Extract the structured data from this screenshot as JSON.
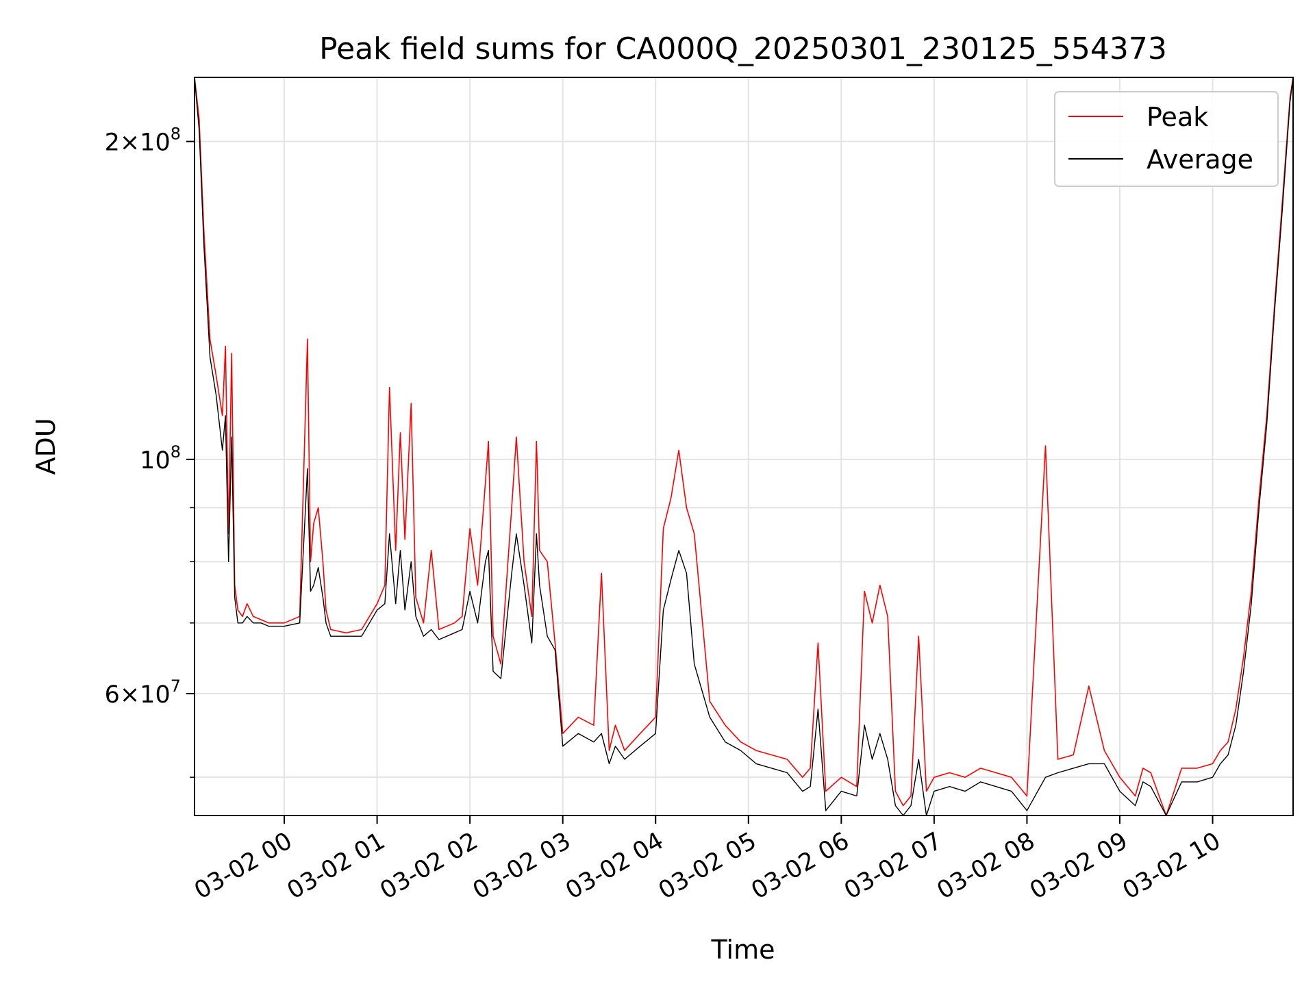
{
  "chart_data": {
    "type": "line",
    "title": "Peak field sums for CA000Q_20250301_230125_554373",
    "xlabel": "Time",
    "ylabel": "ADU",
    "yscale": "log",
    "xlim": [
      "03-01 23:02",
      "03-02 10:52"
    ],
    "ylim": [
      46000000,
      230000000
    ],
    "x_ticks": [
      "03-02 00",
      "03-02 01",
      "03-02 02",
      "03-02 03",
      "03-02 04",
      "03-02 05",
      "03-02 06",
      "03-02 07",
      "03-02 08",
      "03-02 09",
      "03-02 10"
    ],
    "y_ticks": [
      {
        "value": 200000000,
        "mant": "2",
        "exp": "8"
      },
      {
        "value": 100000000,
        "mant": "",
        "exp": "8"
      },
      {
        "value": 60000000,
        "mant": "6",
        "exp": "7"
      }
    ],
    "y_minor_ticks": [
      50000000,
      70000000,
      80000000,
      90000000
    ],
    "grid": true,
    "legend_position": "top-right",
    "series": [
      {
        "name": "Peak",
        "color": "#ff0000",
        "x": [
          "03-01 23:02",
          "03-01 23:05",
          "03-01 23:08",
          "03-01 23:12",
          "03-01 23:16",
          "03-01 23:20",
          "03-01 23:22",
          "03-01 23:24",
          "03-01 23:26",
          "03-01 23:28",
          "03-01 23:30",
          "03-01 23:33",
          "03-01 23:36",
          "03-01 23:40",
          "03-01 23:45",
          "03-01 23:50",
          "03-02 00:00",
          "03-02 00:10",
          "03-02 00:15",
          "03-02 00:17",
          "03-02 00:19",
          "03-02 00:22",
          "03-02 00:25",
          "03-02 00:27",
          "03-02 00:30",
          "03-02 00:40",
          "03-02 00:50",
          "03-02 01:00",
          "03-02 01:05",
          "03-02 01:08",
          "03-02 01:12",
          "03-02 01:15",
          "03-02 01:18",
          "03-02 01:22",
          "03-02 01:25",
          "03-02 01:30",
          "03-02 01:35",
          "03-02 01:40",
          "03-02 01:50",
          "03-02 01:55",
          "03-02 02:00",
          "03-02 02:05",
          "03-02 02:10",
          "03-02 02:12",
          "03-02 02:15",
          "03-02 02:20",
          "03-02 02:27",
          "03-02 02:30",
          "03-02 02:35",
          "03-02 02:40",
          "03-02 02:43",
          "03-02 02:45",
          "03-02 02:50",
          "03-02 02:55",
          "03-02 03:00",
          "03-02 03:10",
          "03-02 03:20",
          "03-02 03:25",
          "03-02 03:30",
          "03-02 03:34",
          "03-02 03:40",
          "03-02 03:50",
          "03-02 04:00",
          "03-02 04:05",
          "03-02 04:10",
          "03-02 04:15",
          "03-02 04:20",
          "03-02 04:25",
          "03-02 04:35",
          "03-02 04:45",
          "03-02 04:55",
          "03-02 05:05",
          "03-02 05:15",
          "03-02 05:25",
          "03-02 05:35",
          "03-02 05:40",
          "03-02 05:45",
          "03-02 05:50",
          "03-02 06:00",
          "03-02 06:10",
          "03-02 06:15",
          "03-02 06:20",
          "03-02 06:25",
          "03-02 06:30",
          "03-02 06:35",
          "03-02 06:40",
          "03-02 06:45",
          "03-02 06:50",
          "03-02 06:55",
          "03-02 07:00",
          "03-02 07:10",
          "03-02 07:20",
          "03-02 07:30",
          "03-02 07:40",
          "03-02 07:50",
          "03-02 08:00",
          "03-02 08:12",
          "03-02 08:20",
          "03-02 08:30",
          "03-02 08:40",
          "03-02 08:50",
          "03-02 09:00",
          "03-02 09:10",
          "03-02 09:15",
          "03-02 09:20",
          "03-02 09:30",
          "03-02 09:40",
          "03-02 09:50",
          "03-02 10:00",
          "03-02 10:05",
          "03-02 10:10",
          "03-02 10:15",
          "03-02 10:20",
          "03-02 10:25",
          "03-02 10:30",
          "03-02 10:35",
          "03-02 10:40",
          "03-02 10:45",
          "03-02 10:50",
          "03-02 10:52"
        ],
        "values": [
          230000000,
          210000000,
          165000000,
          130000000,
          120000000,
          110000000,
          128000000,
          85000000,
          126000000,
          76000000,
          72000000,
          71000000,
          73000000,
          71000000,
          70500000,
          70000000,
          70000000,
          71000000,
          130000000,
          80000000,
          87000000,
          90000000,
          80000000,
          72000000,
          69000000,
          68500000,
          69000000,
          73000000,
          76000000,
          117000000,
          82000000,
          106000000,
          84000000,
          113000000,
          74000000,
          70000000,
          82000000,
          69000000,
          70000000,
          71000000,
          86000000,
          76000000,
          95000000,
          104000000,
          68000000,
          64000000,
          90000000,
          105000000,
          80000000,
          71000000,
          104000000,
          82000000,
          80000000,
          67000000,
          55000000,
          57000000,
          56000000,
          78000000,
          53000000,
          56000000,
          53000000,
          55000000,
          57000000,
          86000000,
          92000000,
          102000000,
          90000000,
          85000000,
          59000000,
          56000000,
          54000000,
          53000000,
          52500000,
          52000000,
          50000000,
          51000000,
          67000000,
          48500000,
          50000000,
          49000000,
          75000000,
          70000000,
          76000000,
          71000000,
          48500000,
          47000000,
          48000000,
          68000000,
          48500000,
          50000000,
          50500000,
          50000000,
          51000000,
          50500000,
          50000000,
          48000000,
          103000000,
          52000000,
          52500000,
          61000000,
          53000000,
          50000000,
          48000000,
          51000000,
          50500000,
          46000000,
          51000000,
          51000000,
          51500000,
          53000000,
          54000000,
          58000000,
          65000000,
          75000000,
          92000000,
          110000000,
          140000000,
          175000000,
          220000000,
          230000000
        ]
      },
      {
        "name": "Average",
        "color": "#000000",
        "x": [
          "03-01 23:02",
          "03-01 23:05",
          "03-01 23:08",
          "03-01 23:12",
          "03-01 23:16",
          "03-01 23:20",
          "03-01 23:22",
          "03-01 23:24",
          "03-01 23:26",
          "03-01 23:28",
          "03-01 23:30",
          "03-01 23:33",
          "03-01 23:36",
          "03-01 23:40",
          "03-01 23:45",
          "03-01 23:50",
          "03-02 00:00",
          "03-02 00:10",
          "03-02 00:15",
          "03-02 00:17",
          "03-02 00:19",
          "03-02 00:22",
          "03-02 00:25",
          "03-02 00:27",
          "03-02 00:30",
          "03-02 00:40",
          "03-02 00:50",
          "03-02 01:00",
          "03-02 01:05",
          "03-02 01:08",
          "03-02 01:12",
          "03-02 01:15",
          "03-02 01:18",
          "03-02 01:22",
          "03-02 01:25",
          "03-02 01:30",
          "03-02 01:35",
          "03-02 01:40",
          "03-02 01:50",
          "03-02 01:55",
          "03-02 02:00",
          "03-02 02:05",
          "03-02 02:10",
          "03-02 02:12",
          "03-02 02:15",
          "03-02 02:20",
          "03-02 02:27",
          "03-02 02:30",
          "03-02 02:35",
          "03-02 02:40",
          "03-02 02:43",
          "03-02 02:45",
          "03-02 02:50",
          "03-02 02:55",
          "03-02 03:00",
          "03-02 03:10",
          "03-02 03:20",
          "03-02 03:25",
          "03-02 03:30",
          "03-02 03:34",
          "03-02 03:40",
          "03-02 03:50",
          "03-02 04:00",
          "03-02 04:05",
          "03-02 04:10",
          "03-02 04:15",
          "03-02 04:20",
          "03-02 04:25",
          "03-02 04:35",
          "03-02 04:45",
          "03-02 04:55",
          "03-02 05:05",
          "03-02 05:15",
          "03-02 05:25",
          "03-02 05:35",
          "03-02 05:40",
          "03-02 05:45",
          "03-02 05:50",
          "03-02 06:00",
          "03-02 06:10",
          "03-02 06:15",
          "03-02 06:20",
          "03-02 06:25",
          "03-02 06:30",
          "03-02 06:35",
          "03-02 06:40",
          "03-02 06:45",
          "03-02 06:50",
          "03-02 06:55",
          "03-02 07:00",
          "03-02 07:10",
          "03-02 07:20",
          "03-02 07:30",
          "03-02 07:40",
          "03-02 07:50",
          "03-02 08:00",
          "03-02 08:12",
          "03-02 08:20",
          "03-02 08:30",
          "03-02 08:40",
          "03-02 08:50",
          "03-02 09:00",
          "03-02 09:10",
          "03-02 09:15",
          "03-02 09:20",
          "03-02 09:30",
          "03-02 09:40",
          "03-02 09:50",
          "03-02 10:00",
          "03-02 10:05",
          "03-02 10:10",
          "03-02 10:15",
          "03-02 10:20",
          "03-02 10:25",
          "03-02 10:30",
          "03-02 10:35",
          "03-02 10:40",
          "03-02 10:45",
          "03-02 10:50",
          "03-02 10:52"
        ],
        "values": [
          230000000,
          205000000,
          160000000,
          125000000,
          115000000,
          102000000,
          110000000,
          80000000,
          105000000,
          74000000,
          70000000,
          70000000,
          71000000,
          70000000,
          70000000,
          69500000,
          69500000,
          70000000,
          98000000,
          75000000,
          76000000,
          79000000,
          74000000,
          70000000,
          68000000,
          68000000,
          68000000,
          72000000,
          73000000,
          85000000,
          73000000,
          82000000,
          72000000,
          80000000,
          71000000,
          68000000,
          69000000,
          67500000,
          68500000,
          69000000,
          75000000,
          70000000,
          80000000,
          82000000,
          63000000,
          62000000,
          78000000,
          85000000,
          76000000,
          67000000,
          85000000,
          76000000,
          68000000,
          66000000,
          53500000,
          55000000,
          54000000,
          55000000,
          51500000,
          53500000,
          52000000,
          53500000,
          55000000,
          72000000,
          77000000,
          82000000,
          78000000,
          64000000,
          57000000,
          54000000,
          53000000,
          51500000,
          51000000,
          50500000,
          48500000,
          49000000,
          58000000,
          46500000,
          48500000,
          48000000,
          56000000,
          52000000,
          55000000,
          52000000,
          47000000,
          45500000,
          47000000,
          52000000,
          46000000,
          48500000,
          49000000,
          48500000,
          49500000,
          49000000,
          48500000,
          46500000,
          50000000,
          50500000,
          51000000,
          51500000,
          51500000,
          48500000,
          47000000,
          49500000,
          49000000,
          45000000,
          49500000,
          49500000,
          50000000,
          51500000,
          52500000,
          56000000,
          63000000,
          73000000,
          90000000,
          108000000,
          138000000,
          172000000,
          218000000,
          230000000
        ]
      }
    ]
  }
}
